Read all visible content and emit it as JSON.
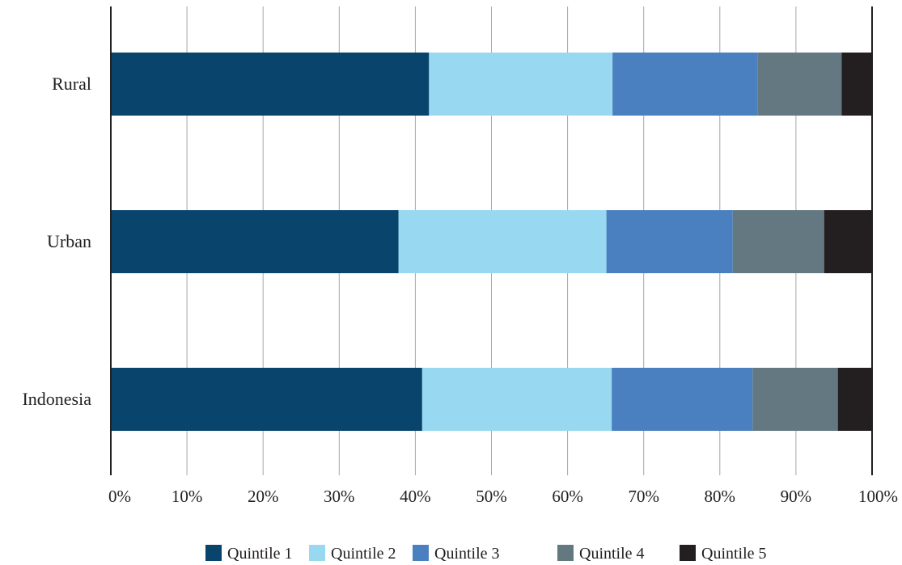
{
  "chart_data": {
    "type": "bar",
    "orientation": "horizontal",
    "stacked": true,
    "normalized": true,
    "title": "",
    "xlabel": "",
    "ylabel": "",
    "categories": [
      "Rural",
      "Urban",
      "Indonesia"
    ],
    "series": [
      {
        "name": "Quintile 1",
        "color": "#08446b",
        "values": [
          41.8,
          37.8,
          40.9
        ]
      },
      {
        "name": "Quintile 2",
        "color": "#98d9f1",
        "values": [
          24.1,
          27.3,
          24.9
        ]
      },
      {
        "name": "Quintile 3",
        "color": "#4a80c0",
        "values": [
          19.1,
          16.6,
          18.5
        ]
      },
      {
        "name": "Quintile 4",
        "color": "#637880",
        "values": [
          11.0,
          12.0,
          11.2
        ]
      },
      {
        "name": "Quintile 5",
        "color": "#231f20",
        "values": [
          4.0,
          6.3,
          4.5
        ]
      }
    ],
    "xlim": [
      0,
      100
    ],
    "xticks": [
      "0%",
      "10%",
      "20%",
      "30%",
      "40%",
      "50%",
      "60%",
      "70%",
      "80%",
      "90%",
      "100%"
    ],
    "grid": "vertical",
    "legend_position": "bottom"
  }
}
